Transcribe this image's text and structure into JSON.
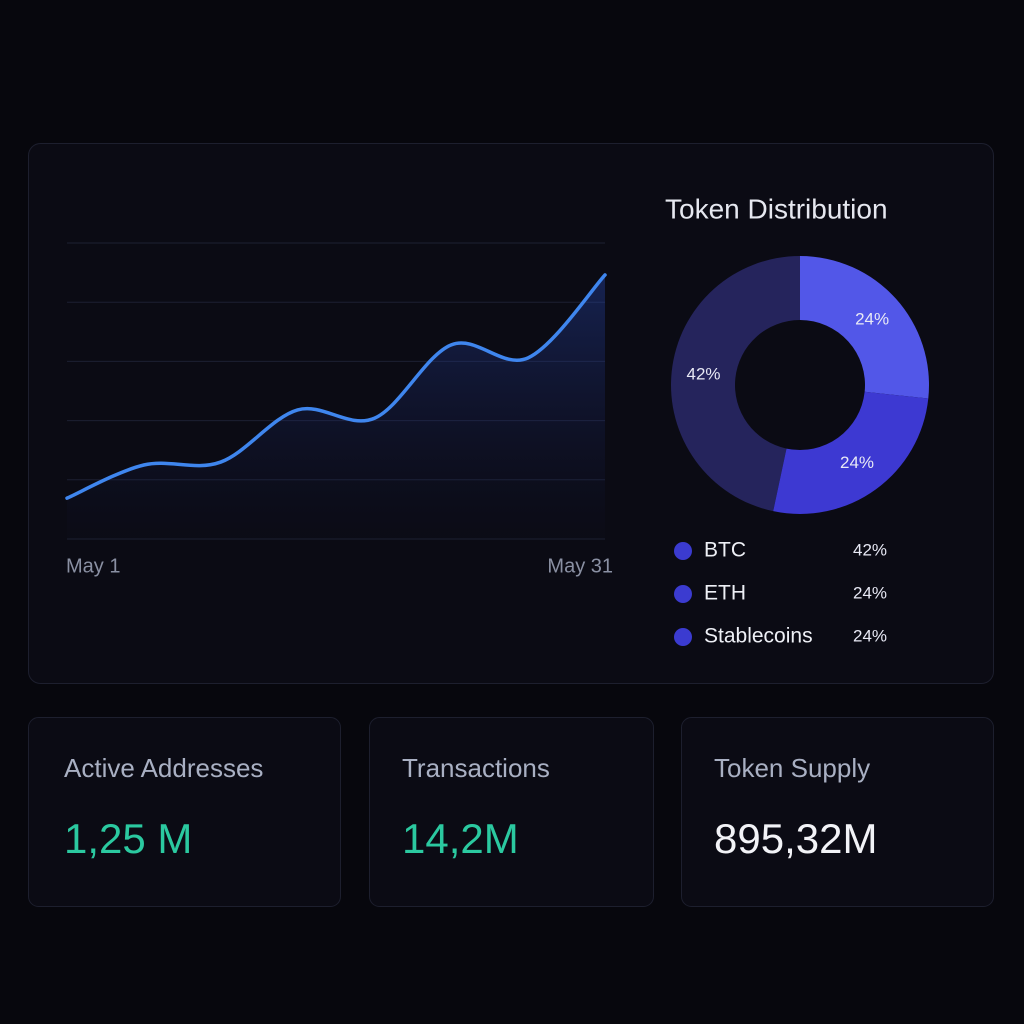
{
  "chart_data": [
    {
      "type": "line",
      "categories": [
        "May 1",
        null,
        null,
        null,
        null,
        null,
        null,
        "May 31"
      ],
      "values": [
        0.69,
        1.25,
        1.3,
        2.18,
        2.04,
        3.28,
        3.06,
        4.46
      ],
      "color": "#3f86ee",
      "ylim": [
        0,
        5
      ],
      "yticks": [
        0,
        1,
        2,
        3,
        4,
        5
      ],
      "grid": true
    },
    {
      "type": "pie",
      "title": "Token Distribution",
      "categories": [
        "BTC",
        "ETH",
        "Stablecoins"
      ],
      "values": [
        42,
        24,
        24
      ],
      "value_labels": [
        "42%",
        "24%",
        "24%"
      ],
      "colors": [
        "#25245c",
        "#5257e8",
        "#3d39d2"
      ]
    }
  ],
  "cards": [
    {
      "label": "Active Addresses",
      "value": "1,25 M",
      "color": "#2bc9a0"
    },
    {
      "label": "Transactions",
      "value": "14,2M",
      "color": "#2bc9a0"
    },
    {
      "label": "Token Supply",
      "value": "895,32M",
      "color": "#f2f3f7"
    }
  ]
}
